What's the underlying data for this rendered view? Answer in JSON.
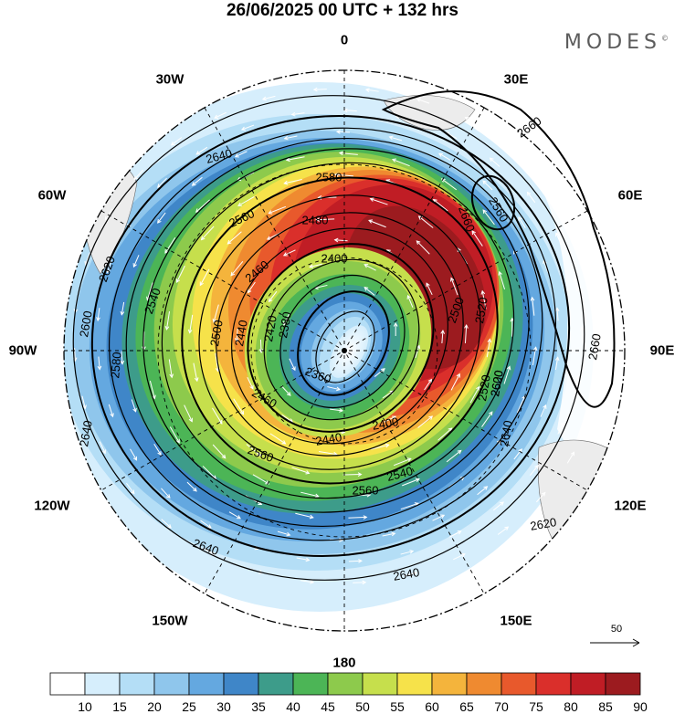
{
  "title": "26/06/2025  00 UTC  + 132 hrs",
  "brand": "MODES",
  "brand_mark": "©",
  "longitude_labels": [
    "0",
    "30E",
    "60E",
    "90E",
    "120E",
    "150E",
    "180",
    "150W",
    "120W",
    "90W",
    "60W",
    "30W"
  ],
  "contour_labels": [
    "2660",
    "2660",
    "2660",
    "2640",
    "2640",
    "2640",
    "2640",
    "2640",
    "2620",
    "2620",
    "2620",
    "2600",
    "2600",
    "2580",
    "2580",
    "2560",
    "2560",
    "2560",
    "2560",
    "2540",
    "2540",
    "2520",
    "2520",
    "2500",
    "2500",
    "2480",
    "2460",
    "2460",
    "2440",
    "2440",
    "2420",
    "2400",
    "2400",
    "2380",
    "2360"
  ],
  "reference_vector_label": "50",
  "colorbar": {
    "ticks": [
      "10",
      "15",
      "20",
      "25",
      "30",
      "35",
      "40",
      "45",
      "50",
      "55",
      "60",
      "65",
      "70",
      "75",
      "80",
      "85",
      "90"
    ],
    "colors": [
      "#ffffff",
      "#d6eefc",
      "#b4def6",
      "#8fc6ec",
      "#64a8e0",
      "#3f86c8",
      "#3d9c8a",
      "#4cb556",
      "#8dca4c",
      "#c6df4c",
      "#f6e24a",
      "#f4b43c",
      "#ef8a30",
      "#e8592c",
      "#da2f2b",
      "#c01d25",
      "#9c1b1f"
    ]
  },
  "colors": {
    "land": "#ececec",
    "grid": "#000000",
    "wind_arrows": "#ffffff"
  }
}
